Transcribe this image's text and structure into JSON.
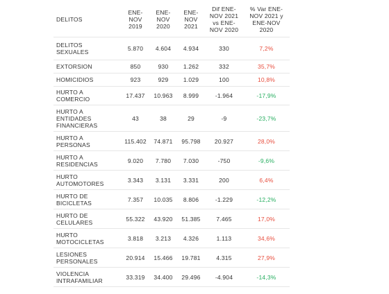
{
  "headers": [
    "DELITOS",
    "ENE-\nNOV\n2019",
    "ENE-\nNOV\n2020",
    "ENE-\nNOV\n2021",
    "Dif ENE-\nNOV 2021\nvs ENE-\nNOV 2020",
    "% Var ENE-\nNOV 2021 y\nENE-NOV\n2020"
  ],
  "rows": [
    {
      "delito": "DELITOS\nSEXUALES",
      "y2019": "5.870",
      "y2020": "4.604",
      "y2021": "4.934",
      "dif": "330",
      "var": "7,2%",
      "sign": "pos",
      "h": 33
    },
    {
      "delito": "EXTORSION",
      "y2019": "850",
      "y2020": "930",
      "y2021": "1.262",
      "dif": "332",
      "var": "35,7%",
      "sign": "pos",
      "h": 19
    },
    {
      "delito": "HOMICIDIOS",
      "y2019": "923",
      "y2020": "929",
      "y2021": "1.029",
      "dif": "100",
      "var": "10,8%",
      "sign": "pos",
      "h": 19
    },
    {
      "delito": "HURTO A\nCOMERCIO",
      "y2019": "17.437",
      "y2020": "10.963",
      "y2021": "8.999",
      "dif": "-1.964",
      "var": "-17,9%",
      "sign": "neg",
      "h": 27
    },
    {
      "delito": "HURTO A\nENTIDADES\nFINANCIERAS",
      "y2019": "43",
      "y2020": "38",
      "y2021": "29",
      "dif": "-9",
      "var": "-23,7%",
      "sign": "neg",
      "h": 38
    },
    {
      "delito": "HURTO A\nPERSONAS",
      "y2019": "115.402",
      "y2020": "74.871",
      "y2021": "95.798",
      "dif": "20.927",
      "var": "28,0%",
      "sign": "pos",
      "h": 28
    },
    {
      "delito": "HURTO A\nRESIDENCIAS",
      "y2019": "9.020",
      "y2020": "7.780",
      "y2021": "7.030",
      "dif": "-750",
      "var": "-9,6%",
      "sign": "neg",
      "h": 28
    },
    {
      "delito": "HURTO\nAUTOMOTORES",
      "y2019": "3.343",
      "y2020": "3.131",
      "y2021": "3.331",
      "dif": "200",
      "var": "6,4%",
      "sign": "pos",
      "h": 28
    },
    {
      "delito": "HURTO DE\nBICICLETAS",
      "y2019": "7.357",
      "y2020": "10.035",
      "y2021": "8.806",
      "dif": "-1.229",
      "var": "-12,2%",
      "sign": "neg",
      "h": 28
    },
    {
      "delito": "HURTO DE\nCELULARES",
      "y2019": "55.322",
      "y2020": "43.920",
      "y2021": "51.385",
      "dif": "7.465",
      "var": "17,0%",
      "sign": "pos",
      "h": 28
    },
    {
      "delito": "HURTO\nMOTOCICLETAS",
      "y2019": "3.818",
      "y2020": "3.213",
      "y2021": "4.326",
      "dif": "1.113",
      "var": "34,6%",
      "sign": "pos",
      "h": 28
    },
    {
      "delito": "LESIONES\nPERSONALES",
      "y2019": "20.914",
      "y2020": "15.466",
      "y2021": "19.781",
      "dif": "4.315",
      "var": "27,9%",
      "sign": "pos",
      "h": 28
    },
    {
      "delito": "VIOLENCIA\nINTRAFAMILIAR",
      "y2019": "33.319",
      "y2020": "34.400",
      "y2021": "29.496",
      "dif": "-4.904",
      "var": "-14,3%",
      "sign": "neg",
      "h": 28
    }
  ],
  "colors": {
    "positive": "#e74c3c",
    "negative": "#27ae60",
    "text": "#333333",
    "border": "#e6e6e6"
  }
}
